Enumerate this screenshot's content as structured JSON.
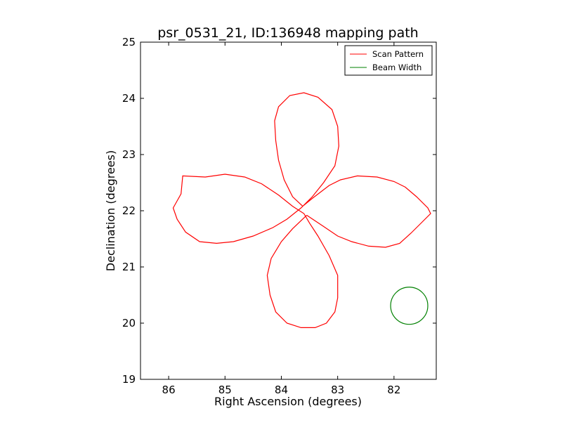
{
  "chart_data": {
    "type": "line",
    "title": "psr_0531_21, ID:136948 mapping path",
    "xlabel": "Right Ascension (degrees)",
    "ylabel": "Declination (degrees)",
    "xlim": [
      86.5,
      81.25
    ],
    "ylim": [
      19,
      25
    ],
    "x_inverted": true,
    "xticks": [
      86,
      85,
      84,
      83,
      82
    ],
    "xtick_labels": [
      "86",
      "85",
      "84",
      "83",
      "82"
    ],
    "yticks": [
      19,
      20,
      21,
      22,
      23,
      24,
      25
    ],
    "ytick_labels": [
      "19",
      "20",
      "21",
      "22",
      "23",
      "24",
      "25"
    ],
    "grid": false,
    "legend": {
      "placement": "top-right",
      "entries": [
        "Scan Pattern",
        "Beam Width"
      ]
    },
    "series": [
      {
        "name": "Scan Pattern",
        "color": "#ff0000",
        "points": [
          [
            83.55,
            21.92
          ],
          [
            83.25,
            21.72
          ],
          [
            83.0,
            21.55
          ],
          [
            82.75,
            21.45
          ],
          [
            82.45,
            21.37
          ],
          [
            82.15,
            21.35
          ],
          [
            81.9,
            21.42
          ],
          [
            81.7,
            21.6
          ],
          [
            81.5,
            21.8
          ],
          [
            81.35,
            21.95
          ],
          [
            81.4,
            22.05
          ],
          [
            81.6,
            22.25
          ],
          [
            81.8,
            22.42
          ],
          [
            82.0,
            22.52
          ],
          [
            82.3,
            22.6
          ],
          [
            82.65,
            22.62
          ],
          [
            82.95,
            22.55
          ],
          [
            83.15,
            22.45
          ],
          [
            83.45,
            22.22
          ],
          [
            83.62,
            22.08
          ],
          [
            83.8,
            22.25
          ],
          [
            83.95,
            22.55
          ],
          [
            84.05,
            22.9
          ],
          [
            84.1,
            23.25
          ],
          [
            84.12,
            23.6
          ],
          [
            84.05,
            23.85
          ],
          [
            83.85,
            24.05
          ],
          [
            83.6,
            24.1
          ],
          [
            83.35,
            24.02
          ],
          [
            83.1,
            23.8
          ],
          [
            83.0,
            23.5
          ],
          [
            82.98,
            23.15
          ],
          [
            83.05,
            22.8
          ],
          [
            83.25,
            22.5
          ],
          [
            83.45,
            22.25
          ],
          [
            83.65,
            22.05
          ],
          [
            83.9,
            21.85
          ],
          [
            84.15,
            21.7
          ],
          [
            84.5,
            21.55
          ],
          [
            84.85,
            21.45
          ],
          [
            85.15,
            21.42
          ],
          [
            85.45,
            21.45
          ],
          [
            85.7,
            21.62
          ],
          [
            85.85,
            21.85
          ],
          [
            85.92,
            22.05
          ],
          [
            85.78,
            22.3
          ],
          [
            85.75,
            22.62
          ],
          [
            85.35,
            22.6
          ],
          [
            85.0,
            22.65
          ],
          [
            84.65,
            22.6
          ],
          [
            84.35,
            22.48
          ],
          [
            84.05,
            22.28
          ],
          [
            83.8,
            22.08
          ],
          [
            83.6,
            21.95
          ],
          [
            83.5,
            21.78
          ],
          [
            83.35,
            21.55
          ],
          [
            83.15,
            21.2
          ],
          [
            83.0,
            20.85
          ],
          [
            83.0,
            20.45
          ],
          [
            83.05,
            20.2
          ],
          [
            83.2,
            20.0
          ],
          [
            83.4,
            19.92
          ],
          [
            83.65,
            19.92
          ],
          [
            83.9,
            20.0
          ],
          [
            84.1,
            20.2
          ],
          [
            84.2,
            20.5
          ],
          [
            84.25,
            20.85
          ],
          [
            84.18,
            21.15
          ],
          [
            84.0,
            21.45
          ],
          [
            83.8,
            21.68
          ],
          [
            83.55,
            21.92
          ]
        ]
      }
    ],
    "beam": {
      "name": "Beam Width",
      "color": "#008000",
      "center": [
        81.73,
        20.31
      ],
      "radius_deg": 0.33
    }
  }
}
